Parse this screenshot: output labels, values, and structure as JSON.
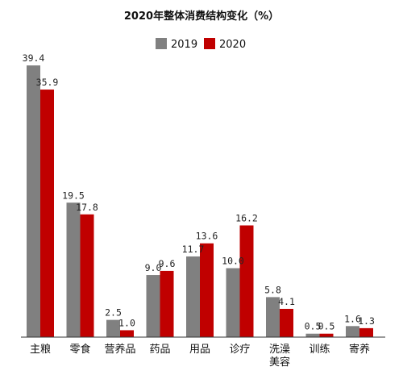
{
  "chart_data": {
    "type": "bar",
    "title": "2020年整体消费结构变化（%）",
    "categories": [
      "主粮",
      "零食",
      "营养品",
      "药品",
      "用品",
      "诊疗",
      "洗澡\n美容",
      "训练",
      "寄养"
    ],
    "series": [
      {
        "name": "2019",
        "color": "#808080",
        "values": [
          39.4,
          19.5,
          2.5,
          9.0,
          11.7,
          10.0,
          5.8,
          0.5,
          1.6
        ],
        "labels": [
          "39.4",
          "19.5",
          "2.5",
          "9.0",
          "11.7",
          "10.0",
          "5.8",
          "0.5",
          "1.6"
        ]
      },
      {
        "name": "2020",
        "color": "#c00000",
        "values": [
          35.9,
          17.8,
          1.0,
          9.6,
          13.6,
          16.2,
          4.1,
          0.5,
          1.3
        ],
        "labels": [
          "35.9",
          "17.8",
          "1.0",
          "9.6",
          "13.6",
          "16.2",
          "4.1",
          "0.5",
          "1.3"
        ]
      }
    ],
    "ylim": [
      0,
      40
    ],
    "legend": "top-center",
    "grid": false
  }
}
